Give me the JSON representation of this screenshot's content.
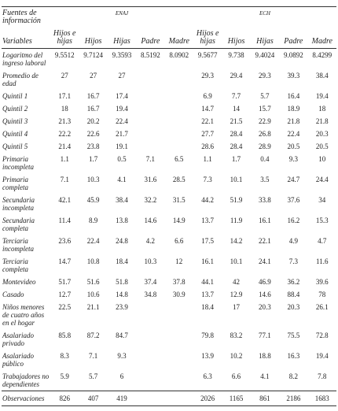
{
  "header": {
    "source_label": "Fuentes de información",
    "groups": [
      "ENAJ",
      "ECH"
    ],
    "variables_label": "Variables",
    "columns": [
      "Hijos e hijas",
      "Hijos",
      "Hijas",
      "Padre",
      "Madre",
      "Hijos e hijas",
      "Hijos",
      "Hijas",
      "Padre",
      "Madre"
    ]
  },
  "rows": [
    {
      "label": "Logaritmo del ingreso laboral",
      "values": [
        9.5512,
        9.7124,
        9.3593,
        8.5192,
        8.0902,
        9.5677,
        9.738,
        9.4024,
        9.0892,
        8.4299
      ]
    },
    {
      "label": "Promedio de edad",
      "values": [
        27,
        27,
        27,
        null,
        null,
        29.3,
        29.4,
        29.3,
        39.3,
        38.4
      ]
    },
    {
      "label": "Quintil 1",
      "values": [
        17.1,
        16.7,
        17.4,
        null,
        null,
        6.9,
        7.7,
        5.7,
        16.4,
        19.4
      ]
    },
    {
      "label": "Quintil 2",
      "values": [
        18,
        16.7,
        19.4,
        null,
        null,
        14.7,
        14,
        15.7,
        18.9,
        18
      ]
    },
    {
      "label": "Quintil 3",
      "values": [
        21.3,
        20.2,
        22.4,
        null,
        null,
        22.1,
        21.5,
        22.9,
        21.8,
        21.8
      ]
    },
    {
      "label": "Quintil 4",
      "values": [
        22.2,
        22.6,
        21.7,
        null,
        null,
        27.7,
        28.4,
        26.8,
        22.4,
        20.3
      ]
    },
    {
      "label": "Quintil 5",
      "values": [
        21.4,
        23.8,
        19.1,
        null,
        null,
        28.6,
        28.4,
        28.9,
        20.5,
        20.5
      ]
    },
    {
      "label": "Primaria incompleta",
      "values": [
        1.1,
        1.7,
        0.5,
        7.1,
        6.5,
        1.1,
        1.7,
        0.4,
        9.3,
        10
      ]
    },
    {
      "label": "Primaria completa",
      "values": [
        7.1,
        10.3,
        4.1,
        31.6,
        28.5,
        7.3,
        10.1,
        3.5,
        24.7,
        24.4
      ]
    },
    {
      "label": "Secundaria incompleta",
      "values": [
        42.1,
        45.9,
        38.4,
        32.2,
        31.5,
        44.2,
        51.9,
        33.8,
        37.6,
        34
      ]
    },
    {
      "label": "Secundaria completa",
      "values": [
        11.4,
        8.9,
        13.8,
        14.6,
        14.9,
        13.7,
        11.9,
        16.1,
        16.2,
        15.3
      ]
    },
    {
      "label": "Terciaria incompleta",
      "values": [
        23.6,
        22.4,
        24.8,
        4.2,
        6.6,
        17.5,
        14.2,
        22.1,
        4.9,
        4.7
      ]
    },
    {
      "label": "Terciaria completa",
      "values": [
        14.7,
        10.8,
        18.4,
        10.3,
        12,
        16.1,
        10.1,
        24.1,
        7.3,
        11.6
      ]
    },
    {
      "label": "Montevideo",
      "values": [
        51.7,
        51.6,
        51.8,
        37.4,
        37.8,
        44.1,
        42,
        46.9,
        36.2,
        39.6
      ]
    },
    {
      "label": "Casado",
      "values": [
        12.7,
        10.6,
        14.8,
        34.8,
        30.9,
        13.7,
        12.9,
        14.6,
        88.4,
        78
      ]
    },
    {
      "label": "Niños menores de cuatro años en el hogar",
      "values": [
        22.5,
        21.1,
        23.9,
        null,
        null,
        18.4,
        17,
        20.3,
        20.3,
        26.1
      ]
    },
    {
      "label": "Asalariado privado",
      "values": [
        85.8,
        87.2,
        84.7,
        null,
        null,
        79.8,
        83.2,
        77.1,
        75.5,
        72.8
      ]
    },
    {
      "label": "Asalariado público",
      "values": [
        8.3,
        7.1,
        9.3,
        null,
        null,
        13.9,
        10.2,
        18.8,
        16.3,
        19.4
      ]
    },
    {
      "label": "Trabajadores no dependientes",
      "values": [
        5.9,
        5.7,
        6,
        null,
        null,
        6.3,
        6.6,
        4.1,
        8.2,
        7.8
      ]
    },
    {
      "label": "Observaciones",
      "values": [
        826,
        407,
        419,
        null,
        null,
        2026,
        1165,
        861,
        2186,
        1683
      ]
    }
  ]
}
